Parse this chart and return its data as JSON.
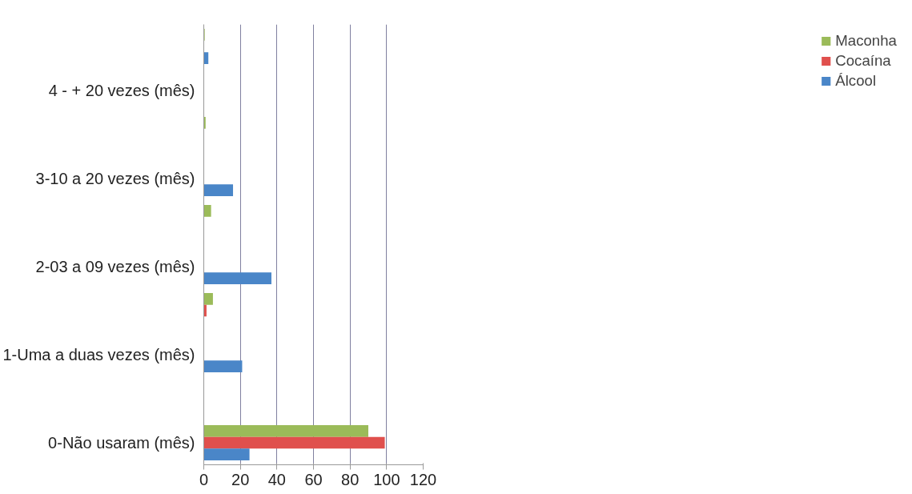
{
  "chart_data": {
    "type": "bar",
    "orientation": "horizontal",
    "categories": [
      null,
      "4 - + 20 vezes (mês)",
      null,
      "3-10 a 20 vezes (mês)",
      null,
      "2-03 a 09 vezes (mês)",
      null,
      "1-Uma a duas vezes (mês)",
      null,
      "0-Não usaram (mês)"
    ],
    "series": [
      {
        "name": "Maconha",
        "color": "#9bbb59",
        "values": [
          0.5,
          null,
          1,
          null,
          4,
          null,
          5,
          null,
          null,
          90
        ]
      },
      {
        "name": "Cocaína",
        "color": "#e0504d",
        "values": [
          null,
          null,
          null,
          null,
          null,
          null,
          1.5,
          null,
          null,
          99
        ]
      },
      {
        "name": "Álcool",
        "color": "#4a86c8",
        "values": [
          2.5,
          null,
          null,
          16,
          null,
          37,
          null,
          21,
          null,
          25
        ]
      }
    ],
    "xlim": [
      0,
      120
    ],
    "xticks": [
      0,
      20,
      40,
      60,
      80,
      100,
      120
    ],
    "grid": "x",
    "legend": "right"
  }
}
